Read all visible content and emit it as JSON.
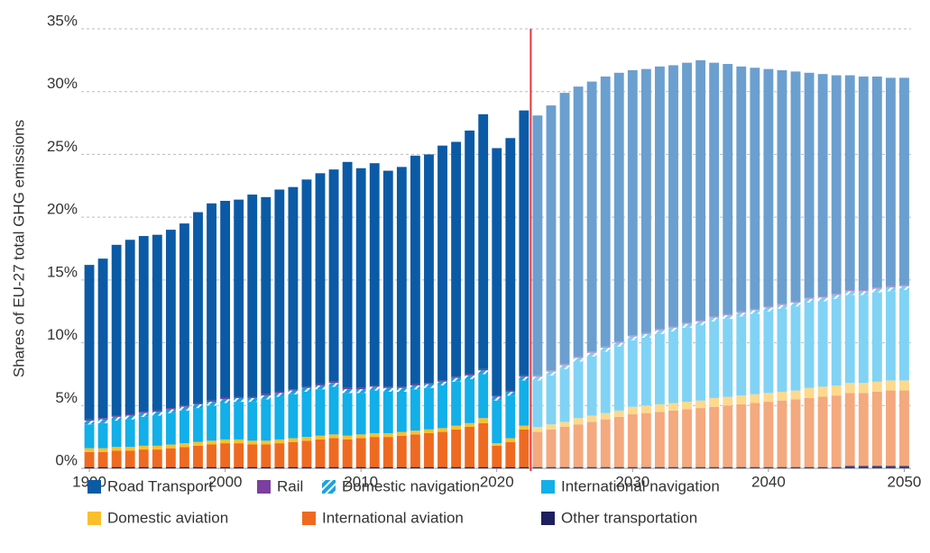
{
  "chart_data": {
    "type": "stacked_bar",
    "y_label": "Shares of EU-27 total GHG emissions",
    "x": [
      1990,
      1991,
      1992,
      1993,
      1994,
      1995,
      1996,
      1997,
      1998,
      1999,
      2000,
      2001,
      2002,
      2003,
      2004,
      2005,
      2006,
      2007,
      2008,
      2009,
      2010,
      2011,
      2012,
      2013,
      2014,
      2015,
      2016,
      2017,
      2018,
      2019,
      2020,
      2021,
      2022,
      2023,
      2024,
      2025,
      2026,
      2027,
      2028,
      2029,
      2030,
      2031,
      2032,
      2033,
      2034,
      2035,
      2036,
      2037,
      2038,
      2039,
      2040,
      2041,
      2042,
      2043,
      2044,
      2045,
      2046,
      2047,
      2048,
      2049,
      2050
    ],
    "xlim": [
      1989.4,
      2050.5
    ],
    "xticks": [
      1990,
      2000,
      2010,
      2020,
      2030,
      2040,
      2050
    ],
    "ylim": [
      0,
      35
    ],
    "yticks": [
      {
        "value": 0,
        "label": "0%"
      },
      {
        "value": 5,
        "label": "5%"
      },
      {
        "value": 10,
        "label": "10%"
      },
      {
        "value": 15,
        "label": "15%"
      },
      {
        "value": 20,
        "label": "20%"
      },
      {
        "value": 25,
        "label": "25%"
      },
      {
        "value": 30,
        "label": "30%"
      },
      {
        "value": 35,
        "label": "35%"
      }
    ],
    "grid": true,
    "projection_from": 2023,
    "divider_color": "#e8333a",
    "series": [
      {
        "name": "Road Transport",
        "color": "#0b5aa6",
        "projection_color": "#6b9fcf",
        "values": [
          12.3,
          12.7,
          13.6,
          13.9,
          14.0,
          14.0,
          14.2,
          14.5,
          15.2,
          15.7,
          15.7,
          15.7,
          16.1,
          15.7,
          16.1,
          16.1,
          16.5,
          16.8,
          16.9,
          18.0,
          17.5,
          17.7,
          17.2,
          17.5,
          18.2,
          18.2,
          18.7,
          18.7,
          19.4,
          20.3,
          19.7,
          20.1,
          21.1,
          20.7,
          21.1,
          21.6,
          21.5,
          21.5,
          21.5,
          21.4,
          21.1,
          21.0,
          20.9,
          20.8,
          20.7,
          20.7,
          20.2,
          19.9,
          19.5,
          19.2,
          18.9,
          18.6,
          18.3,
          17.9,
          17.7,
          17.4,
          17.1,
          17.0,
          16.8,
          16.6,
          16.5
        ]
      },
      {
        "name": "Rail",
        "color": "#7b3fa0",
        "projection_color": "#b48fcb",
        "values": [
          0.1,
          0.1,
          0.1,
          0.1,
          0.1,
          0.1,
          0.1,
          0.1,
          0.1,
          0.1,
          0.1,
          0.1,
          0.1,
          0.1,
          0.1,
          0.1,
          0.1,
          0.1,
          0.1,
          0.1,
          0.1,
          0.1,
          0.1,
          0.1,
          0.1,
          0.1,
          0.1,
          0.1,
          0.1,
          0.1,
          0.1,
          0.1,
          0.1,
          0.1,
          0.1,
          0.1,
          0.1,
          0.1,
          0.1,
          0.1,
          0.1,
          0.1,
          0.1,
          0.1,
          0.1,
          0.1,
          0.1,
          0.1,
          0.1,
          0.1,
          0.1,
          0.1,
          0.1,
          0.1,
          0.1,
          0.1,
          0.1,
          0.1,
          0.1,
          0.1,
          0.1
        ]
      },
      {
        "name": "Domestic navigation",
        "color": "#1aa3e0",
        "projection_color": "#7fd0f3",
        "hatched": true,
        "values": [
          0.3,
          0.3,
          0.3,
          0.3,
          0.3,
          0.3,
          0.3,
          0.3,
          0.3,
          0.3,
          0.3,
          0.3,
          0.3,
          0.3,
          0.3,
          0.3,
          0.3,
          0.3,
          0.3,
          0.3,
          0.3,
          0.3,
          0.3,
          0.3,
          0.3,
          0.3,
          0.3,
          0.3,
          0.3,
          0.3,
          0.3,
          0.3,
          0.3,
          0.3,
          0.3,
          0.3,
          0.3,
          0.3,
          0.3,
          0.3,
          0.3,
          0.3,
          0.3,
          0.3,
          0.3,
          0.3,
          0.3,
          0.3,
          0.3,
          0.3,
          0.3,
          0.3,
          0.3,
          0.3,
          0.3,
          0.3,
          0.3,
          0.3,
          0.3,
          0.3,
          0.3
        ]
      },
      {
        "name": "International navigation",
        "color": "#12afe9",
        "projection_color": "#80d3f5",
        "values": [
          1.9,
          2.0,
          2.1,
          2.2,
          2.3,
          2.4,
          2.5,
          2.6,
          2.7,
          2.8,
          2.9,
          3.0,
          3.1,
          3.3,
          3.4,
          3.5,
          3.6,
          3.7,
          3.8,
          3.4,
          3.3,
          3.4,
          3.3,
          3.2,
          3.3,
          3.3,
          3.4,
          3.5,
          3.5,
          3.5,
          3.4,
          3.4,
          3.6,
          3.7,
          3.9,
          4.2,
          4.5,
          4.7,
          4.9,
          5.1,
          5.3,
          5.4,
          5.6,
          5.7,
          5.9,
          6.0,
          6.1,
          6.2,
          6.3,
          6.4,
          6.5,
          6.6,
          6.7,
          6.8,
          6.8,
          6.9,
          7.0,
          7.0,
          7.1,
          7.1,
          7.2
        ]
      },
      {
        "name": "Domestic aviation",
        "color": "#fbbf2e",
        "projection_color": "#fcd98c",
        "values": [
          0.3,
          0.3,
          0.3,
          0.3,
          0.3,
          0.3,
          0.3,
          0.3,
          0.3,
          0.3,
          0.3,
          0.3,
          0.3,
          0.3,
          0.3,
          0.3,
          0.3,
          0.3,
          0.3,
          0.3,
          0.3,
          0.3,
          0.3,
          0.3,
          0.3,
          0.3,
          0.3,
          0.3,
          0.3,
          0.4,
          0.2,
          0.3,
          0.3,
          0.4,
          0.4,
          0.4,
          0.5,
          0.5,
          0.5,
          0.5,
          0.6,
          0.6,
          0.6,
          0.6,
          0.6,
          0.6,
          0.7,
          0.7,
          0.7,
          0.7,
          0.7,
          0.7,
          0.7,
          0.8,
          0.8,
          0.8,
          0.8,
          0.8,
          0.8,
          0.8,
          0.8
        ]
      },
      {
        "name": "International aviation",
        "color": "#ef6a21",
        "projection_color": "#f4a97e",
        "values": [
          1.2,
          1.2,
          1.3,
          1.3,
          1.4,
          1.4,
          1.5,
          1.6,
          1.7,
          1.8,
          1.9,
          1.9,
          1.8,
          1.8,
          1.9,
          2.0,
          2.1,
          2.2,
          2.3,
          2.2,
          2.3,
          2.4,
          2.4,
          2.5,
          2.6,
          2.7,
          2.8,
          3.0,
          3.2,
          3.5,
          1.7,
          2.0,
          3.0,
          2.8,
          3.0,
          3.2,
          3.4,
          3.6,
          3.8,
          4.0,
          4.2,
          4.3,
          4.4,
          4.5,
          4.6,
          4.7,
          4.8,
          4.9,
          5.0,
          5.1,
          5.2,
          5.3,
          5.4,
          5.5,
          5.6,
          5.7,
          5.8,
          5.8,
          5.9,
          6.0,
          6.0
        ]
      },
      {
        "name": "Other transportation",
        "color": "#1d1f5e",
        "projection_color": "#3b3e7d",
        "values": [
          0.1,
          0.1,
          0.1,
          0.1,
          0.1,
          0.1,
          0.1,
          0.1,
          0.1,
          0.1,
          0.1,
          0.1,
          0.1,
          0.1,
          0.1,
          0.1,
          0.1,
          0.1,
          0.1,
          0.1,
          0.1,
          0.1,
          0.1,
          0.1,
          0.1,
          0.1,
          0.1,
          0.1,
          0.1,
          0.1,
          0.1,
          0.1,
          0.1,
          0.1,
          0.1,
          0.1,
          0.1,
          0.1,
          0.1,
          0.1,
          0.1,
          0.1,
          0.1,
          0.1,
          0.1,
          0.1,
          0.1,
          0.1,
          0.1,
          0.1,
          0.1,
          0.1,
          0.1,
          0.1,
          0.1,
          0.1,
          0.2,
          0.2,
          0.2,
          0.2,
          0.2
        ]
      }
    ]
  }
}
